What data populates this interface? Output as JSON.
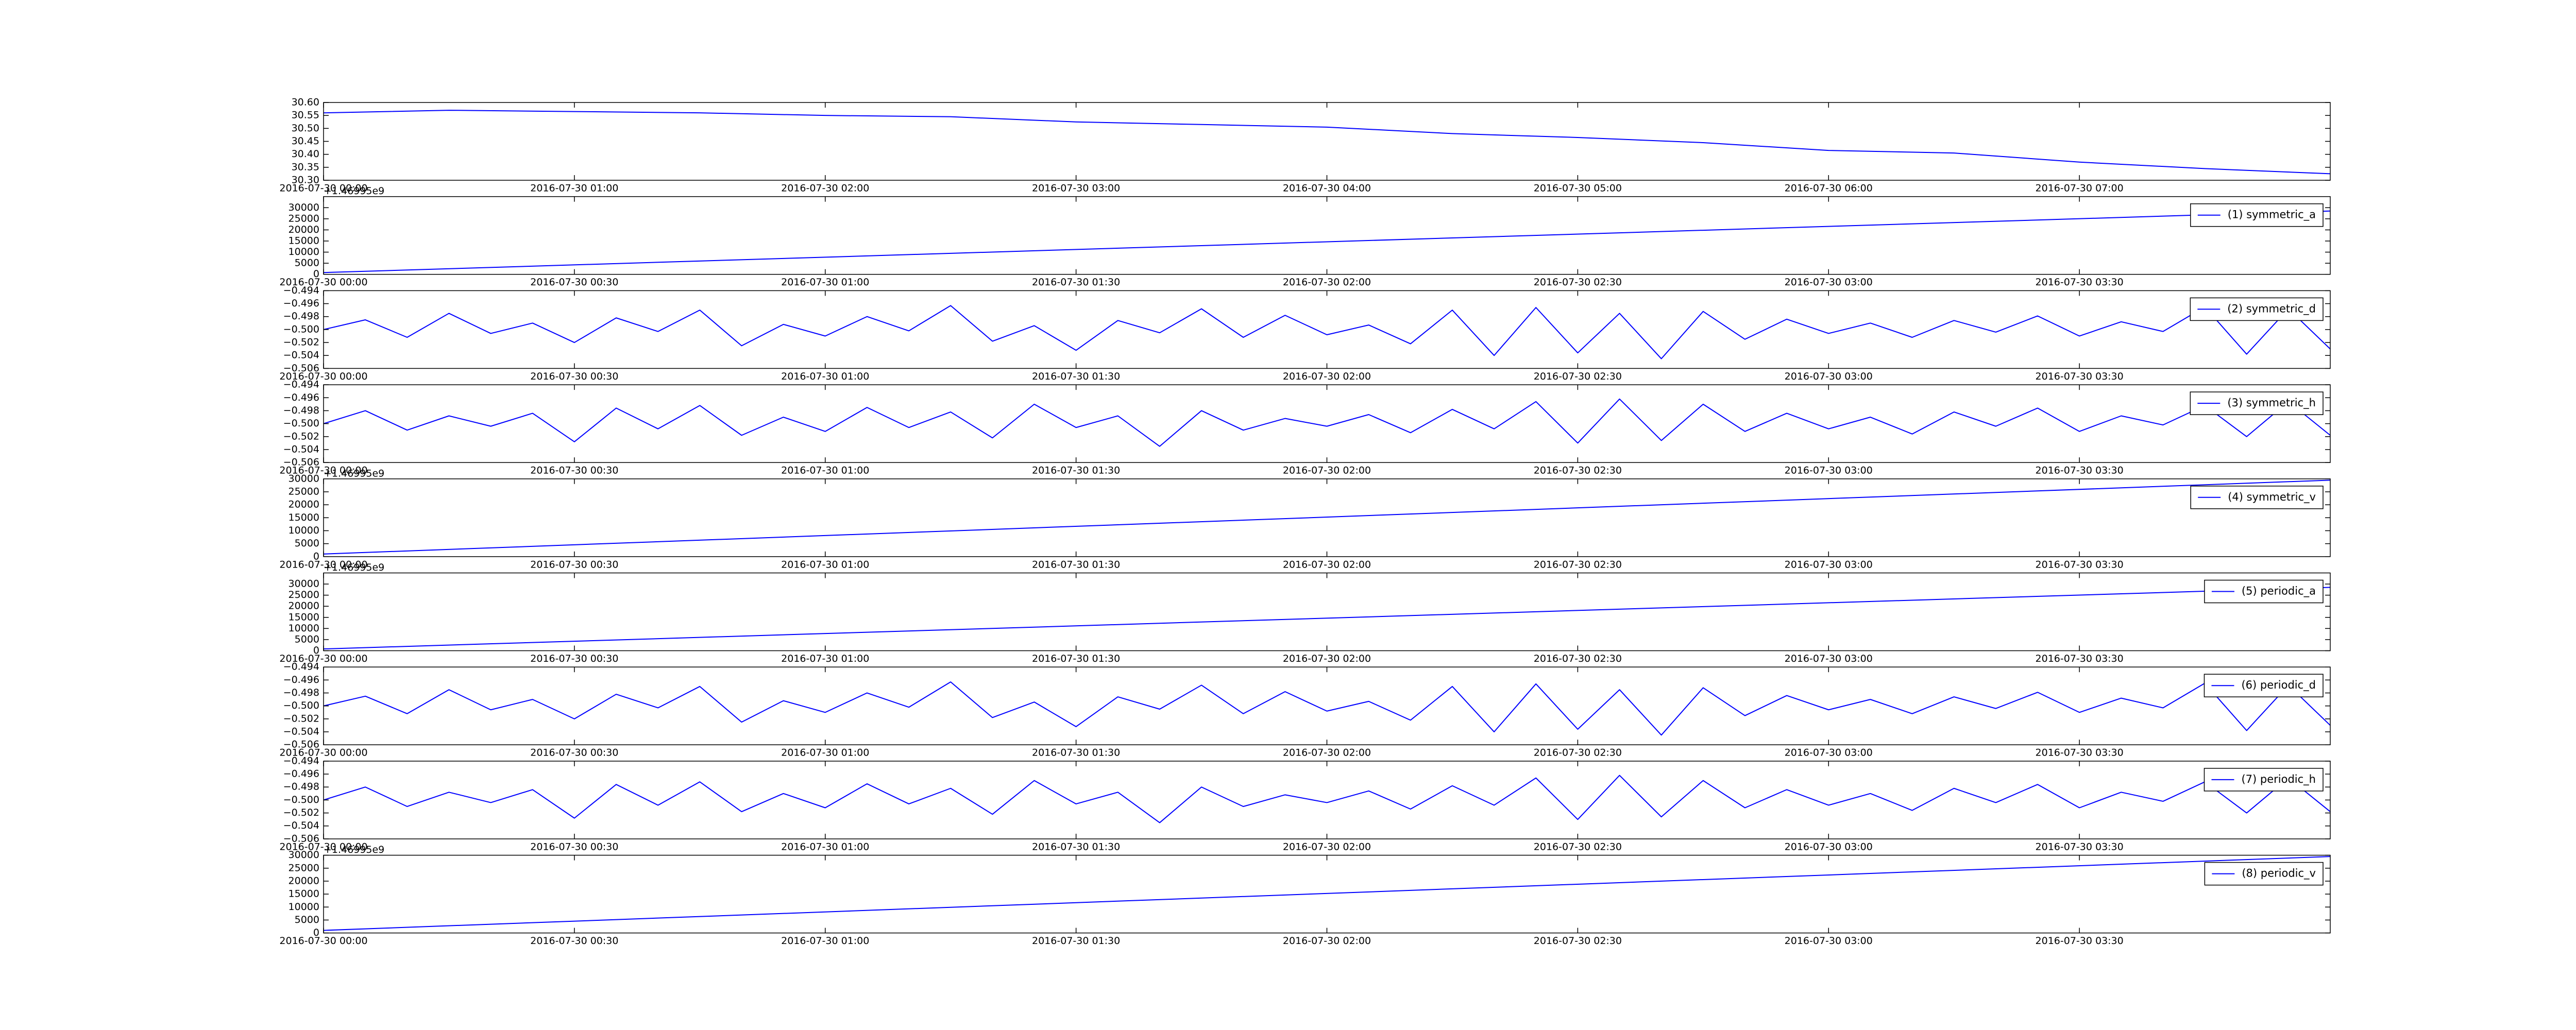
{
  "chart_data": [
    {
      "type": "line",
      "x": [
        "2016-07-30 00:00",
        "2016-07-30 00:30",
        "2016-07-30 01:00",
        "2016-07-30 01:30",
        "2016-07-30 02:00",
        "2016-07-30 02:30",
        "2016-07-30 03:00",
        "2016-07-30 03:30",
        "2016-07-30 04:00",
        "2016-07-30 04:30",
        "2016-07-30 05:00",
        "2016-07-30 05:30",
        "2016-07-30 06:00",
        "2016-07-30 06:30",
        "2016-07-30 07:00",
        "2016-07-30 07:30",
        "2016-07-30 08:00"
      ],
      "series": [
        {
          "color": "#0000ff",
          "values": [
            30.56,
            30.57,
            30.565,
            30.56,
            30.55,
            30.545,
            30.525,
            30.515,
            30.505,
            30.48,
            30.465,
            30.445,
            30.415,
            30.405,
            30.37,
            30.345,
            30.325
          ]
        }
      ],
      "xlim": [
        "2016-07-30 00:00",
        "2016-07-30 08:00"
      ],
      "xticks": [
        "2016-07-30 00:00",
        "2016-07-30 01:00",
        "2016-07-30 02:00",
        "2016-07-30 03:00",
        "2016-07-30 04:00",
        "2016-07-30 05:00",
        "2016-07-30 06:00",
        "2016-07-30 07:00"
      ],
      "ylim": [
        30.3,
        30.6
      ],
      "yticks": [
        {
          "value": 30.3,
          "label": "30.30"
        },
        30.35,
        {
          "value": 30.4,
          "label": "30.40"
        },
        30.45,
        {
          "value": 30.5,
          "label": "30.50"
        },
        30.55,
        {
          "value": 30.6,
          "label": "30.60"
        }
      ]
    },
    {
      "type": "line",
      "offset_label": "+1.46995e9",
      "legend": "upper right",
      "x": [
        "2016-07-30 00:00",
        "2016-07-30 04:00"
      ],
      "series": [
        {
          "name": "(1) symmetric_a",
          "color": "#0000ff",
          "values": [
            800,
            28500
          ]
        }
      ],
      "xlim": [
        "2016-07-30 00:00",
        "2016-07-30 04:00"
      ],
      "xticks": [
        "2016-07-30 00:00",
        "2016-07-30 00:30",
        "2016-07-30 01:00",
        "2016-07-30 01:30",
        "2016-07-30 02:00",
        "2016-07-30 02:30",
        "2016-07-30 03:00",
        "2016-07-30 03:30"
      ],
      "ylim": [
        0,
        35000
      ],
      "yticks": [
        0,
        5000,
        10000,
        15000,
        20000,
        25000,
        30000
      ]
    },
    {
      "type": "line",
      "legend": "upper right",
      "x": [
        "2016-07-30 00:00",
        "2016-07-30 00:05",
        "2016-07-30 00:10",
        "2016-07-30 00:15",
        "2016-07-30 00:20",
        "2016-07-30 00:25",
        "2016-07-30 00:30",
        "2016-07-30 00:35",
        "2016-07-30 00:40",
        "2016-07-30 00:45",
        "2016-07-30 00:50",
        "2016-07-30 00:55",
        "2016-07-30 01:00",
        "2016-07-30 01:05",
        "2016-07-30 01:10",
        "2016-07-30 01:15",
        "2016-07-30 01:20",
        "2016-07-30 01:25",
        "2016-07-30 01:30",
        "2016-07-30 01:35",
        "2016-07-30 01:40",
        "2016-07-30 01:45",
        "2016-07-30 01:50",
        "2016-07-30 01:55",
        "2016-07-30 02:00",
        "2016-07-30 02:05",
        "2016-07-30 02:10",
        "2016-07-30 02:15",
        "2016-07-30 02:20",
        "2016-07-30 02:25",
        "2016-07-30 02:30",
        "2016-07-30 02:35",
        "2016-07-30 02:40",
        "2016-07-30 02:45",
        "2016-07-30 02:50",
        "2016-07-30 02:55",
        "2016-07-30 03:00",
        "2016-07-30 03:05",
        "2016-07-30 03:10",
        "2016-07-30 03:15",
        "2016-07-30 03:20",
        "2016-07-30 03:25",
        "2016-07-30 03:30",
        "2016-07-30 03:35",
        "2016-07-30 03:40",
        "2016-07-30 03:45",
        "2016-07-30 03:50",
        "2016-07-30 03:55",
        "2016-07-30 04:00"
      ],
      "series": [
        {
          "name": "(2) symmetric_d",
          "color": "#0000ff",
          "values": [
            -0.5,
            -0.4985,
            -0.5012,
            -0.4975,
            -0.5006,
            -0.499,
            -0.502,
            -0.4982,
            -0.5003,
            -0.497,
            -0.5025,
            -0.4992,
            -0.501,
            -0.498,
            -0.5002,
            -0.4963,
            -0.5018,
            -0.4994,
            -0.5032,
            -0.4986,
            -0.5005,
            -0.4968,
            -0.5012,
            -0.4978,
            -0.5008,
            -0.4993,
            -0.5022,
            -0.497,
            -0.504,
            -0.4966,
            -0.5036,
            -0.4975,
            -0.5045,
            -0.4972,
            -0.5015,
            -0.4984,
            -0.5006,
            -0.499,
            -0.5012,
            -0.4986,
            -0.5004,
            -0.4979,
            -0.501,
            -0.4988,
            -0.5003,
            -0.4965,
            -0.5038,
            -0.4968,
            -0.503
          ]
        }
      ],
      "xlim": [
        "2016-07-30 00:00",
        "2016-07-30 04:00"
      ],
      "xticks": [
        "2016-07-30 00:00",
        "2016-07-30 00:30",
        "2016-07-30 01:00",
        "2016-07-30 01:30",
        "2016-07-30 02:00",
        "2016-07-30 02:30",
        "2016-07-30 03:00",
        "2016-07-30 03:30"
      ],
      "ylim": [
        -0.506,
        -0.494
      ],
      "yticks": [
        {
          "value": -0.506,
          "label": "−0.506"
        },
        {
          "value": -0.504,
          "label": "−0.504"
        },
        {
          "value": -0.502,
          "label": "−0.502"
        },
        {
          "value": -0.5,
          "label": "−0.500"
        },
        {
          "value": -0.498,
          "label": "−0.498"
        },
        {
          "value": -0.496,
          "label": "−0.496"
        },
        {
          "value": -0.494,
          "label": "−0.494"
        }
      ]
    },
    {
      "type": "line",
      "legend": "upper right",
      "x": [
        "2016-07-30 00:00",
        "2016-07-30 00:05",
        "2016-07-30 00:10",
        "2016-07-30 00:15",
        "2016-07-30 00:20",
        "2016-07-30 00:25",
        "2016-07-30 00:30",
        "2016-07-30 00:35",
        "2016-07-30 00:40",
        "2016-07-30 00:45",
        "2016-07-30 00:50",
        "2016-07-30 00:55",
        "2016-07-30 01:00",
        "2016-07-30 01:05",
        "2016-07-30 01:10",
        "2016-07-30 01:15",
        "2016-07-30 01:20",
        "2016-07-30 01:25",
        "2016-07-30 01:30",
        "2016-07-30 01:35",
        "2016-07-30 01:40",
        "2016-07-30 01:45",
        "2016-07-30 01:50",
        "2016-07-30 01:55",
        "2016-07-30 02:00",
        "2016-07-30 02:05",
        "2016-07-30 02:10",
        "2016-07-30 02:15",
        "2016-07-30 02:20",
        "2016-07-30 02:25",
        "2016-07-30 02:30",
        "2016-07-30 02:35",
        "2016-07-30 02:40",
        "2016-07-30 02:45",
        "2016-07-30 02:50",
        "2016-07-30 02:55",
        "2016-07-30 03:00",
        "2016-07-30 03:05",
        "2016-07-30 03:10",
        "2016-07-30 03:15",
        "2016-07-30 03:20",
        "2016-07-30 03:25",
        "2016-07-30 03:30",
        "2016-07-30 03:35",
        "2016-07-30 03:40",
        "2016-07-30 03:45",
        "2016-07-30 03:50",
        "2016-07-30 03:55",
        "2016-07-30 04:00"
      ],
      "series": [
        {
          "name": "(3) symmetric_h",
          "color": "#0000ff",
          "values": [
            -0.5,
            -0.498,
            -0.501,
            -0.4988,
            -0.5004,
            -0.4984,
            -0.5028,
            -0.4976,
            -0.5008,
            -0.4972,
            -0.5018,
            -0.499,
            -0.5012,
            -0.4975,
            -0.5006,
            -0.4982,
            -0.5022,
            -0.497,
            -0.5006,
            -0.4988,
            -0.5035,
            -0.498,
            -0.501,
            -0.4992,
            -0.5004,
            -0.4986,
            -0.5014,
            -0.4978,
            -0.5008,
            -0.4966,
            -0.503,
            -0.4962,
            -0.5026,
            -0.497,
            -0.5012,
            -0.4984,
            -0.5008,
            -0.499,
            -0.5016,
            -0.4982,
            -0.5004,
            -0.4976,
            -0.5012,
            -0.4988,
            -0.5002,
            -0.4972,
            -0.502,
            -0.4966,
            -0.5018
          ]
        }
      ],
      "xlim": [
        "2016-07-30 00:00",
        "2016-07-30 04:00"
      ],
      "xticks": [
        "2016-07-30 00:00",
        "2016-07-30 00:30",
        "2016-07-30 01:00",
        "2016-07-30 01:30",
        "2016-07-30 02:00",
        "2016-07-30 02:30",
        "2016-07-30 03:00",
        "2016-07-30 03:30"
      ],
      "ylim": [
        -0.506,
        -0.494
      ],
      "yticks": [
        {
          "value": -0.506,
          "label": "−0.506"
        },
        {
          "value": -0.504,
          "label": "−0.504"
        },
        {
          "value": -0.502,
          "label": "−0.502"
        },
        {
          "value": -0.5,
          "label": "−0.500"
        },
        {
          "value": -0.498,
          "label": "−0.498"
        },
        {
          "value": -0.496,
          "label": "−0.496"
        },
        {
          "value": -0.494,
          "label": "−0.494"
        }
      ]
    },
    {
      "type": "line",
      "offset_label": "+1.46995e9",
      "legend": "upper right",
      "x": [
        "2016-07-30 00:00",
        "2016-07-30 04:00"
      ],
      "series": [
        {
          "name": "(4) symmetric_v",
          "color": "#0000ff",
          "values": [
            1000,
            29500
          ]
        }
      ],
      "xlim": [
        "2016-07-30 00:00",
        "2016-07-30 04:00"
      ],
      "xticks": [
        "2016-07-30 00:00",
        "2016-07-30 00:30",
        "2016-07-30 01:00",
        "2016-07-30 01:30",
        "2016-07-30 02:00",
        "2016-07-30 02:30",
        "2016-07-30 03:00",
        "2016-07-30 03:30"
      ],
      "ylim": [
        0,
        30000
      ],
      "yticks": [
        0,
        5000,
        10000,
        15000,
        20000,
        25000,
        30000
      ]
    },
    {
      "type": "line",
      "offset_label": "+1.46995e9",
      "legend": "upper right",
      "x": [
        "2016-07-30 00:00",
        "2016-07-30 04:00"
      ],
      "series": [
        {
          "name": "(5) periodic_a",
          "color": "#0000ff",
          "values": [
            800,
            28500
          ]
        }
      ],
      "xlim": [
        "2016-07-30 00:00",
        "2016-07-30 04:00"
      ],
      "xticks": [
        "2016-07-30 00:00",
        "2016-07-30 00:30",
        "2016-07-30 01:00",
        "2016-07-30 01:30",
        "2016-07-30 02:00",
        "2016-07-30 02:30",
        "2016-07-30 03:00",
        "2016-07-30 03:30"
      ],
      "ylim": [
        0,
        35000
      ],
      "yticks": [
        0,
        5000,
        10000,
        15000,
        20000,
        25000,
        30000
      ]
    },
    {
      "type": "line",
      "legend": "upper right",
      "x": [
        "2016-07-30 00:00",
        "2016-07-30 00:05",
        "2016-07-30 00:10",
        "2016-07-30 00:15",
        "2016-07-30 00:20",
        "2016-07-30 00:25",
        "2016-07-30 00:30",
        "2016-07-30 00:35",
        "2016-07-30 00:40",
        "2016-07-30 00:45",
        "2016-07-30 00:50",
        "2016-07-30 00:55",
        "2016-07-30 01:00",
        "2016-07-30 01:05",
        "2016-07-30 01:10",
        "2016-07-30 01:15",
        "2016-07-30 01:20",
        "2016-07-30 01:25",
        "2016-07-30 01:30",
        "2016-07-30 01:35",
        "2016-07-30 01:40",
        "2016-07-30 01:45",
        "2016-07-30 01:50",
        "2016-07-30 01:55",
        "2016-07-30 02:00",
        "2016-07-30 02:05",
        "2016-07-30 02:10",
        "2016-07-30 02:15",
        "2016-07-30 02:20",
        "2016-07-30 02:25",
        "2016-07-30 02:30",
        "2016-07-30 02:35",
        "2016-07-30 02:40",
        "2016-07-30 02:45",
        "2016-07-30 02:50",
        "2016-07-30 02:55",
        "2016-07-30 03:00",
        "2016-07-30 03:05",
        "2016-07-30 03:10",
        "2016-07-30 03:15",
        "2016-07-30 03:20",
        "2016-07-30 03:25",
        "2016-07-30 03:30",
        "2016-07-30 03:35",
        "2016-07-30 03:40",
        "2016-07-30 03:45",
        "2016-07-30 03:50",
        "2016-07-30 03:55",
        "2016-07-30 04:00"
      ],
      "series": [
        {
          "name": "(6) periodic_d",
          "color": "#0000ff",
          "values": [
            -0.5,
            -0.4985,
            -0.5012,
            -0.4975,
            -0.5006,
            -0.499,
            -0.502,
            -0.4982,
            -0.5003,
            -0.497,
            -0.5025,
            -0.4992,
            -0.501,
            -0.498,
            -0.5002,
            -0.4963,
            -0.5018,
            -0.4994,
            -0.5032,
            -0.4986,
            -0.5005,
            -0.4968,
            -0.5012,
            -0.4978,
            -0.5008,
            -0.4993,
            -0.5022,
            -0.497,
            -0.504,
            -0.4966,
            -0.5036,
            -0.4975,
            -0.5045,
            -0.4972,
            -0.5015,
            -0.4984,
            -0.5006,
            -0.499,
            -0.5012,
            -0.4986,
            -0.5004,
            -0.4979,
            -0.501,
            -0.4988,
            -0.5003,
            -0.4965,
            -0.5038,
            -0.4968,
            -0.503
          ]
        }
      ],
      "xlim": [
        "2016-07-30 00:00",
        "2016-07-30 04:00"
      ],
      "xticks": [
        "2016-07-30 00:00",
        "2016-07-30 00:30",
        "2016-07-30 01:00",
        "2016-07-30 01:30",
        "2016-07-30 02:00",
        "2016-07-30 02:30",
        "2016-07-30 03:00",
        "2016-07-30 03:30"
      ],
      "ylim": [
        -0.506,
        -0.494
      ],
      "yticks": [
        {
          "value": -0.506,
          "label": "−0.506"
        },
        {
          "value": -0.504,
          "label": "−0.504"
        },
        {
          "value": -0.502,
          "label": "−0.502"
        },
        {
          "value": -0.5,
          "label": "−0.500"
        },
        {
          "value": -0.498,
          "label": "−0.498"
        },
        {
          "value": -0.496,
          "label": "−0.496"
        },
        {
          "value": -0.494,
          "label": "−0.494"
        }
      ]
    },
    {
      "type": "line",
      "legend": "upper right",
      "x": [
        "2016-07-30 00:00",
        "2016-07-30 00:05",
        "2016-07-30 00:10",
        "2016-07-30 00:15",
        "2016-07-30 00:20",
        "2016-07-30 00:25",
        "2016-07-30 00:30",
        "2016-07-30 00:35",
        "2016-07-30 00:40",
        "2016-07-30 00:45",
        "2016-07-30 00:50",
        "2016-07-30 00:55",
        "2016-07-30 01:00",
        "2016-07-30 01:05",
        "2016-07-30 01:10",
        "2016-07-30 01:15",
        "2016-07-30 01:20",
        "2016-07-30 01:25",
        "2016-07-30 01:30",
        "2016-07-30 01:35",
        "2016-07-30 01:40",
        "2016-07-30 01:45",
        "2016-07-30 01:50",
        "2016-07-30 01:55",
        "2016-07-30 02:00",
        "2016-07-30 02:05",
        "2016-07-30 02:10",
        "2016-07-30 02:15",
        "2016-07-30 02:20",
        "2016-07-30 02:25",
        "2016-07-30 02:30",
        "2016-07-30 02:35",
        "2016-07-30 02:40",
        "2016-07-30 02:45",
        "2016-07-30 02:50",
        "2016-07-30 02:55",
        "2016-07-30 03:00",
        "2016-07-30 03:05",
        "2016-07-30 03:10",
        "2016-07-30 03:15",
        "2016-07-30 03:20",
        "2016-07-30 03:25",
        "2016-07-30 03:30",
        "2016-07-30 03:35",
        "2016-07-30 03:40",
        "2016-07-30 03:45",
        "2016-07-30 03:50",
        "2016-07-30 03:55",
        "2016-07-30 04:00"
      ],
      "series": [
        {
          "name": "(7) periodic_h",
          "color": "#0000ff",
          "values": [
            -0.5,
            -0.498,
            -0.501,
            -0.4988,
            -0.5004,
            -0.4984,
            -0.5028,
            -0.4976,
            -0.5008,
            -0.4972,
            -0.5018,
            -0.499,
            -0.5012,
            -0.4975,
            -0.5006,
            -0.4982,
            -0.5022,
            -0.497,
            -0.5006,
            -0.4988,
            -0.5035,
            -0.498,
            -0.501,
            -0.4992,
            -0.5004,
            -0.4986,
            -0.5014,
            -0.4978,
            -0.5008,
            -0.4966,
            -0.503,
            -0.4962,
            -0.5026,
            -0.497,
            -0.5012,
            -0.4984,
            -0.5008,
            -0.499,
            -0.5016,
            -0.4982,
            -0.5004,
            -0.4976,
            -0.5012,
            -0.4988,
            -0.5002,
            -0.4972,
            -0.502,
            -0.4966,
            -0.5018
          ]
        }
      ],
      "xlim": [
        "2016-07-30 00:00",
        "2016-07-30 04:00"
      ],
      "xticks": [
        "2016-07-30 00:00",
        "2016-07-30 00:30",
        "2016-07-30 01:00",
        "2016-07-30 01:30",
        "2016-07-30 02:00",
        "2016-07-30 02:30",
        "2016-07-30 03:00",
        "2016-07-30 03:30"
      ],
      "ylim": [
        -0.506,
        -0.494
      ],
      "yticks": [
        {
          "value": -0.506,
          "label": "−0.506"
        },
        {
          "value": -0.504,
          "label": "−0.504"
        },
        {
          "value": -0.502,
          "label": "−0.502"
        },
        {
          "value": -0.5,
          "label": "−0.500"
        },
        {
          "value": -0.498,
          "label": "−0.498"
        },
        {
          "value": -0.496,
          "label": "−0.496"
        },
        {
          "value": -0.494,
          "label": "−0.494"
        }
      ]
    },
    {
      "type": "line",
      "offset_label": "+1.46995e9",
      "legend": "upper right",
      "x": [
        "2016-07-30 00:00",
        "2016-07-30 04:00"
      ],
      "series": [
        {
          "name": "(8) periodic_v",
          "color": "#0000ff",
          "values": [
            1000,
            29500
          ]
        }
      ],
      "xlim": [
        "2016-07-30 00:00",
        "2016-07-30 04:00"
      ],
      "xticks": [
        "2016-07-30 00:00",
        "2016-07-30 00:30",
        "2016-07-30 01:00",
        "2016-07-30 01:30",
        "2016-07-30 02:00",
        "2016-07-30 02:30",
        "2016-07-30 03:00",
        "2016-07-30 03:30"
      ],
      "ylim": [
        0,
        30000
      ],
      "yticks": [
        0,
        5000,
        10000,
        15000,
        20000,
        25000,
        30000
      ]
    }
  ]
}
